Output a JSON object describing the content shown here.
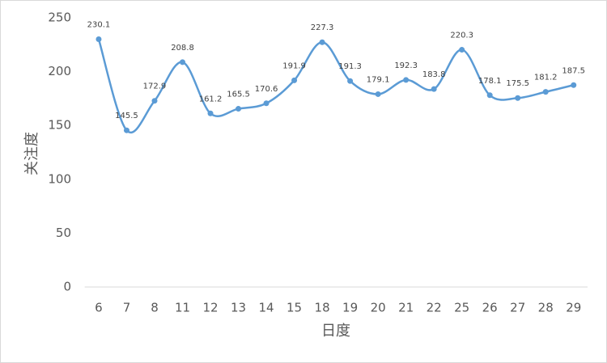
{
  "chart_data": {
    "type": "line",
    "x_label": "日度",
    "y_label": "关注度",
    "categories": [
      "6",
      "7",
      "8",
      "11",
      "12",
      "13",
      "14",
      "15",
      "18",
      "19",
      "20",
      "21",
      "22",
      "25",
      "26",
      "27",
      "28",
      "29"
    ],
    "series": [
      {
        "name": "关注度",
        "color": "#5b9bd5",
        "values": [
          230.1,
          145.5,
          172.9,
          208.8,
          161.2,
          165.5,
          170.6,
          191.9,
          227.3,
          191.3,
          179.1,
          192.3,
          183.8,
          220.3,
          178.1,
          175.5,
          181.2,
          187.5
        ]
      }
    ],
    "ylim": [
      0,
      250
    ],
    "yticks": [
      0,
      50,
      100,
      150,
      200,
      250
    ],
    "grid": false,
    "smooth": true
  }
}
